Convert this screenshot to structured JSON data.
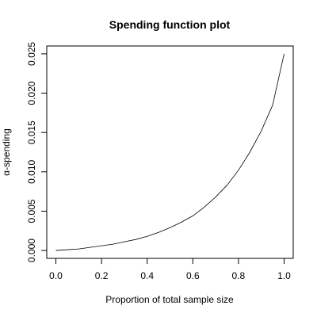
{
  "chart_data": {
    "type": "line",
    "title": "Spending function plot",
    "xlabel": "Proportion of total sample size",
    "ylabel": "α-spending",
    "xlim": [
      -0.04,
      1.04
    ],
    "ylim": [
      -0.001,
      0.026
    ],
    "x_ticks": [
      0.0,
      0.2,
      0.4,
      0.6,
      0.8,
      1.0
    ],
    "x_tick_labels": [
      "0.0",
      "0.2",
      "0.4",
      "0.6",
      "0.8",
      "1.0"
    ],
    "y_ticks": [
      0.0,
      0.005,
      0.01,
      0.015,
      0.02,
      0.025
    ],
    "y_tick_labels": [
      "0.000",
      "0.005",
      "0.010",
      "0.015",
      "0.020",
      "0.025"
    ],
    "grid": false,
    "series": [
      {
        "x": [
          0.0,
          0.05,
          0.1,
          0.15,
          0.2,
          0.25,
          0.3,
          0.35,
          0.4,
          0.45,
          0.5,
          0.55,
          0.6,
          0.65,
          0.7,
          0.75,
          0.8,
          0.85,
          0.9,
          0.95,
          1.0
        ],
        "y": [
          0.0,
          0.0001,
          0.0002,
          0.0004,
          0.0006,
          0.0008,
          0.0011,
          0.0014,
          0.0018,
          0.0023,
          0.0029,
          0.0036,
          0.0044,
          0.0055,
          0.0068,
          0.0083,
          0.0102,
          0.0125,
          0.0152,
          0.0185,
          0.025
        ]
      }
    ]
  }
}
